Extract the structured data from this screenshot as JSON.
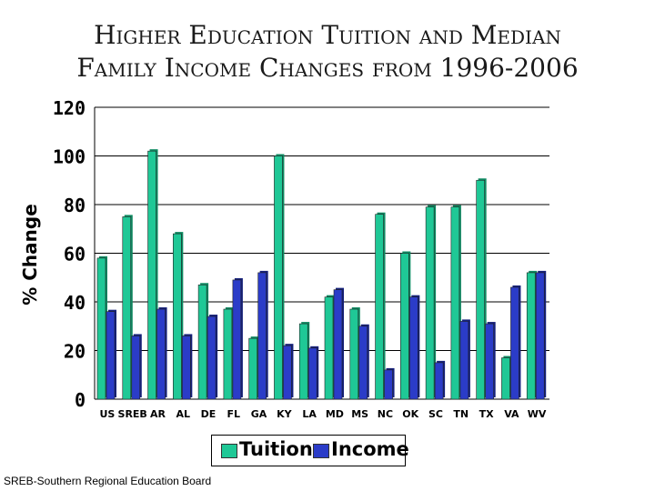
{
  "title_line1": "Higher Education Tuition and Median",
  "title_line2": "Family Income Changes from 1996-2006",
  "source_note": "SREB-Southern Regional Education Board",
  "chart_data": {
    "type": "bar",
    "title": "Higher Education Tuition and Median Family Income Changes from 1996-2006",
    "xlabel": "",
    "ylabel": "% Change",
    "ylim": [
      0,
      120
    ],
    "yticks": [
      0,
      20,
      40,
      60,
      80,
      100,
      120
    ],
    "grid": true,
    "legend_position": "bottom",
    "categories": [
      "US",
      "SREB",
      "AR",
      "AL",
      "DE",
      "FL",
      "GA",
      "KY",
      "LA",
      "MD",
      "MS",
      "NC",
      "OK",
      "SC",
      "TN",
      "TX",
      "VA",
      "WV"
    ],
    "series": [
      {
        "name": "Tuition",
        "color": "#1fc896",
        "values": [
          58,
          75,
          102,
          68,
          47,
          37,
          25,
          100,
          31,
          42,
          37,
          76,
          60,
          79,
          79,
          90,
          17,
          52
        ]
      },
      {
        "name": "Income",
        "color": "#2b3cc8",
        "values": [
          36,
          26,
          37,
          26,
          34,
          49,
          52,
          22,
          21,
          45,
          30,
          12,
          42,
          15,
          32,
          31,
          46,
          52
        ]
      }
    ]
  }
}
